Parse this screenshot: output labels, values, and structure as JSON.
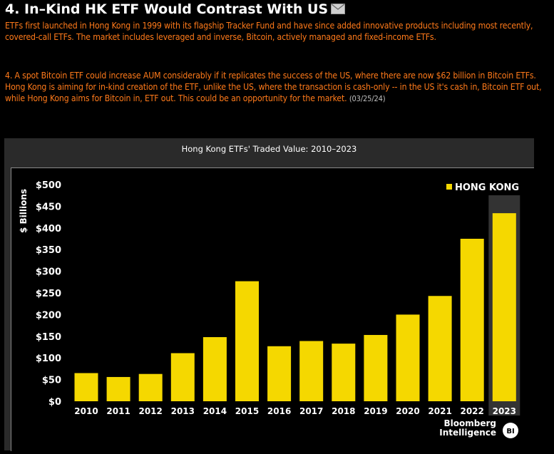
{
  "header": {
    "title": "4. In–Kind HK ETF Would Contrast With US",
    "icon": "mail-icon"
  },
  "article": {
    "paragraph1": "ETFs first launched in Hong Kong in 1999 with its flagship Tracker Fund and have since added innovative products including most recently, covered-call ETFs. The market includes leveraged and inverse, Bitcoin, actively managed and fixed-income ETFs.",
    "paragraph2": "4. A spot Bitcoin ETF could increase AUM considerably if it replicates the success of the US, where there are now $62 billion in Bitcoin ETFs. Hong Kong is aiming for in-kind creation of the ETF, unlike the US, where the transaction is cash-only -- in the US it's cash in, Bitcoin ETF out, while Hong Kong aims for Bitcoin in, ETF out. This could be an opportunity for the market.",
    "date": "(03/25/24)"
  },
  "colors": {
    "bar": "#f5d800",
    "highlight_column": "#333333",
    "text_orange": "#ff7a1a"
  },
  "branding": {
    "line1": "Bloomberg",
    "line2": "Intelligence",
    "badge": "BI"
  },
  "chart_data": {
    "type": "bar",
    "title": "Hong Kong ETFs' Traded Value: 2010–2023",
    "ylabel": "$ Billions",
    "xlabel": "",
    "categories": [
      "2010",
      "2011",
      "2012",
      "2013",
      "2014",
      "2015",
      "2016",
      "2017",
      "2018",
      "2019",
      "2020",
      "2021",
      "2022",
      "2023"
    ],
    "series": [
      {
        "name": "HONG KONG",
        "values": [
          65,
          56,
          63,
          111,
          148,
          277,
          127,
          139,
          133,
          153,
          200,
          243,
          375,
          434
        ]
      }
    ],
    "ylim": [
      0,
      500
    ],
    "yticks": [
      0,
      50,
      100,
      150,
      200,
      250,
      300,
      350,
      400,
      450,
      500
    ],
    "ytick_labels": [
      "$0",
      "$50",
      "$100",
      "$150",
      "$200",
      "$250",
      "$300",
      "$350",
      "$400",
      "$450",
      "$500"
    ],
    "highlighted_category": "2023",
    "grid": false,
    "legend_position": "top-right"
  }
}
